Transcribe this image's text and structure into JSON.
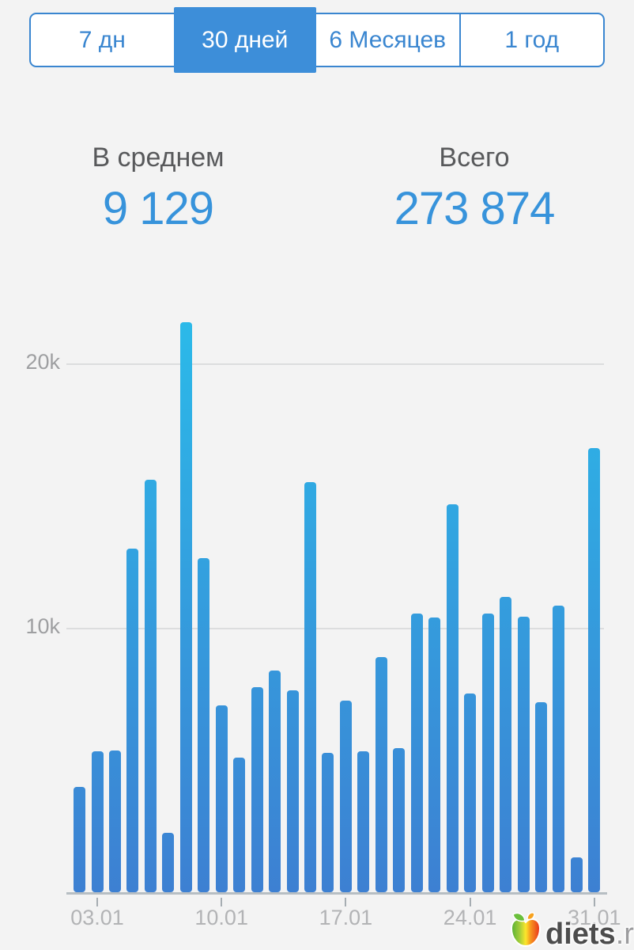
{
  "tabs": {
    "items": [
      {
        "label": "7 дн",
        "selected": false
      },
      {
        "label": "30 дней",
        "selected": true
      },
      {
        "label": "6 Месяцев",
        "selected": false
      },
      {
        "label": "1 год",
        "selected": false
      }
    ]
  },
  "stats": {
    "average_label": "В среднем",
    "average_value": "9 129",
    "total_label": "Всего",
    "total_value": "273 874"
  },
  "chart_data": {
    "type": "bar",
    "title": "",
    "xlabel": "",
    "ylabel": "",
    "x": [
      "02.01",
      "03.01",
      "04.01",
      "05.01",
      "06.01",
      "07.01",
      "08.01",
      "09.01",
      "10.01",
      "11.01",
      "12.01",
      "13.01",
      "14.01",
      "15.01",
      "16.01",
      "17.01",
      "18.01",
      "19.01",
      "20.01",
      "21.01",
      "22.01",
      "23.01",
      "24.01",
      "25.01",
      "26.01",
      "27.01",
      "28.01",
      "29.01",
      "30.01",
      "31.01"
    ],
    "values": [
      3960,
      5320,
      5350,
      12950,
      15560,
      2240,
      21480,
      12600,
      7034,
      5080,
      7740,
      8350,
      7620,
      15450,
      5260,
      7230,
      5320,
      8880,
      5440,
      10500,
      10350,
      14640,
      7500,
      10520,
      11130,
      10380,
      7150,
      10800,
      1300,
      16740
    ],
    "ylim": [
      0,
      21700
    ],
    "y_gridlines": [
      10000,
      20000
    ],
    "y_tick_labels": [
      "20k",
      "10k"
    ],
    "x_tick_labels": [
      "03.01",
      "10.01",
      "17.01",
      "24.01",
      "31.01"
    ],
    "x_tick_indices": [
      1,
      8,
      15,
      22,
      29
    ],
    "grid": true,
    "legend": "none"
  },
  "colors": {
    "accent_blue": "#3a86d0",
    "selected_tab_bg": "#3d8ed9",
    "stat_value_blue": "#3793db",
    "bar_gradient_top": "#2bbae9",
    "bar_gradient_bottom": "#3d80d2",
    "gridline": "#dcddde",
    "axis_label_gray": "#b2b3b5"
  },
  "watermark": {
    "brand": "diets",
    "tld": ".ru",
    "icon": "apple-icon"
  }
}
